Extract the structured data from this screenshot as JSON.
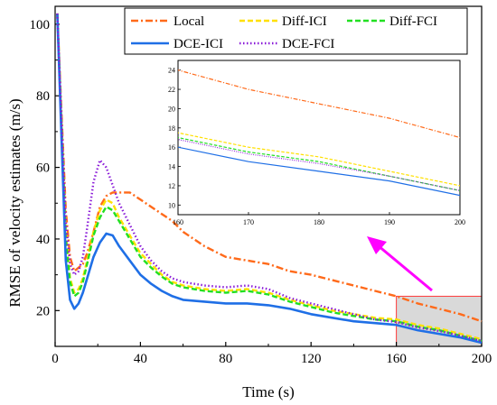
{
  "chart_data": {
    "type": "line",
    "xlabel": "Time (s)",
    "ylabel": "RMSE of velocity estimates (m/s)",
    "xlim": [
      0,
      200
    ],
    "ylim": [
      10,
      105
    ],
    "xticks": [
      0,
      40,
      80,
      120,
      160,
      200
    ],
    "yticks": [
      20,
      40,
      60,
      80,
      100
    ],
    "legend_position": "top-right",
    "grid": false,
    "highlight_region": {
      "x": [
        160,
        200
      ],
      "y": [
        10,
        24
      ],
      "color": "#d9d9d9"
    },
    "arrow_color": "#ff00ff",
    "series": [
      {
        "name": "Local",
        "color": "#ff6a1a",
        "dash": "dashdot",
        "x": [
          1,
          3,
          5,
          7,
          9,
          11,
          13,
          15,
          18,
          21,
          24,
          27,
          30,
          35,
          40,
          45,
          50,
          55,
          60,
          70,
          80,
          90,
          100,
          110,
          120,
          130,
          140,
          150,
          160,
          170,
          180,
          190,
          200
        ],
        "y": [
          103,
          75,
          48,
          35,
          31,
          32,
          33,
          36,
          42,
          49,
          52,
          53,
          53,
          53,
          51,
          49,
          47,
          45,
          42,
          38,
          35,
          34,
          33,
          31,
          30,
          28.5,
          27,
          25.5,
          24,
          22,
          20.5,
          19,
          17
        ]
      },
      {
        "name": "Diff-ICI",
        "color": "#ffe000",
        "dash": "dash",
        "x": [
          1,
          3,
          5,
          7,
          9,
          11,
          13,
          15,
          18,
          21,
          24,
          27,
          30,
          35,
          40,
          45,
          50,
          55,
          60,
          70,
          80,
          90,
          100,
          110,
          120,
          130,
          140,
          150,
          160,
          170,
          180,
          190,
          200
        ],
        "y": [
          103,
          72,
          42,
          29,
          25,
          26,
          29,
          34,
          42,
          48,
          51,
          50,
          46,
          41,
          36,
          33,
          30,
          28,
          27,
          26,
          25.5,
          26,
          25,
          23,
          21.5,
          20,
          19,
          18,
          17.5,
          16,
          15,
          13.5,
          12
        ]
      },
      {
        "name": "Diff-FCI",
        "color": "#22e022",
        "dash": "dash",
        "x": [
          1,
          3,
          5,
          7,
          9,
          11,
          13,
          15,
          18,
          21,
          24,
          27,
          30,
          35,
          40,
          45,
          50,
          55,
          60,
          70,
          80,
          90,
          100,
          110,
          120,
          130,
          140,
          150,
          160,
          170,
          180,
          190,
          200
        ],
        "y": [
          103,
          71,
          40,
          28,
          24,
          25,
          28,
          33,
          41,
          46,
          49,
          48,
          45,
          40,
          35,
          32,
          29.5,
          27.5,
          26.5,
          25.5,
          25,
          25.5,
          24.5,
          22.5,
          21,
          19.5,
          18.5,
          17.5,
          17,
          15.5,
          14.5,
          13,
          11.5
        ]
      },
      {
        "name": "DCE-ICI",
        "color": "#1f6fe6",
        "dash": "solid",
        "x": [
          1,
          3,
          5,
          7,
          9,
          11,
          13,
          15,
          18,
          21,
          24,
          27,
          30,
          35,
          40,
          45,
          50,
          55,
          60,
          70,
          80,
          90,
          100,
          110,
          120,
          130,
          140,
          150,
          160,
          170,
          180,
          190,
          200
        ],
        "y": [
          103,
          68,
          34,
          23,
          20.5,
          22,
          25,
          29,
          35,
          39,
          41.5,
          41,
          38,
          34,
          30,
          27.5,
          25.5,
          24,
          23,
          22.5,
          22,
          22,
          21.5,
          20.5,
          19,
          18,
          17,
          16.5,
          16,
          14.5,
          13.5,
          12.5,
          11
        ]
      },
      {
        "name": "DCE-FCI",
        "color": "#8a1ad8",
        "dash": "dot",
        "x": [
          1,
          3,
          5,
          7,
          9,
          11,
          13,
          15,
          18,
          21,
          24,
          27,
          30,
          35,
          40,
          45,
          50,
          55,
          60,
          70,
          80,
          90,
          100,
          110,
          120,
          130,
          140,
          150,
          160,
          170,
          180,
          190,
          200
        ],
        "y": [
          103,
          73,
          45,
          33,
          30,
          31,
          35,
          43,
          56,
          62,
          60,
          55,
          50,
          44,
          38,
          34,
          31,
          29,
          28,
          27,
          26.5,
          27,
          26,
          23.5,
          22,
          20.5,
          19,
          17.5,
          16.8,
          15.3,
          14.3,
          13,
          11.5
        ]
      }
    ],
    "inset": {
      "xlim": [
        160,
        200
      ],
      "ylim": [
        9,
        25
      ],
      "xticks": [
        160,
        170,
        180,
        190,
        200
      ],
      "yticks": [
        10,
        12,
        14,
        16,
        18,
        20,
        22,
        24
      ]
    }
  }
}
